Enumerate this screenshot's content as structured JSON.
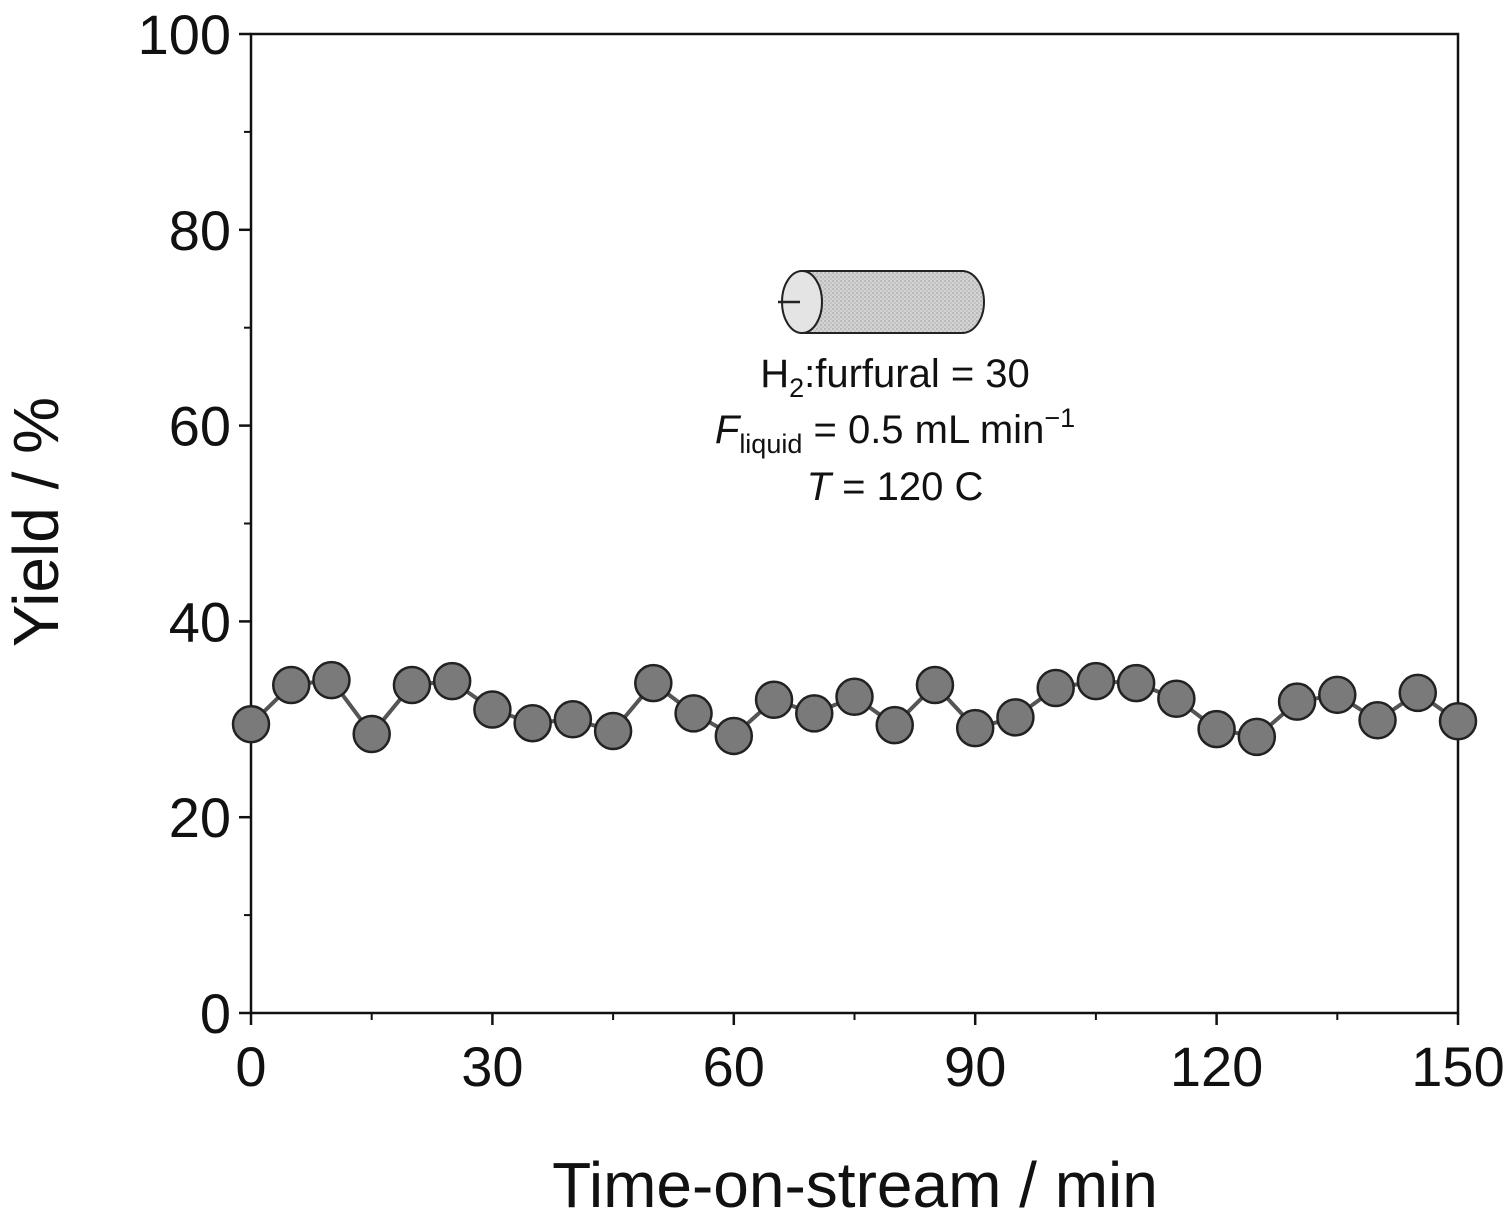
{
  "chart_data": {
    "type": "line",
    "title": "",
    "xlabel": "Time-on-stream / min",
    "ylabel": "Yield / %",
    "xlim": [
      0,
      150
    ],
    "ylim": [
      0,
      100
    ],
    "xticks": [
      0,
      30,
      60,
      90,
      120,
      150
    ],
    "yticks": [
      0,
      20,
      40,
      60,
      80,
      100
    ],
    "xtick_labels": [
      "0",
      "30",
      "60",
      "90",
      "120",
      "150"
    ],
    "ytick_labels": [
      "0",
      "20",
      "40",
      "60",
      "80",
      "100"
    ],
    "grid": false,
    "legend": "none",
    "series": [
      {
        "name": "Yield",
        "marker": "circle",
        "marker_color": "#7a7a7a",
        "line_color": "#555555",
        "x": [
          0,
          5,
          10,
          15,
          20,
          25,
          30,
          35,
          40,
          45,
          50,
          55,
          60,
          65,
          70,
          75,
          80,
          85,
          90,
          95,
          100,
          105,
          110,
          115,
          120,
          125,
          130,
          135,
          140,
          145,
          150
        ],
        "y": [
          29.5,
          33.5,
          34.0,
          28.5,
          33.5,
          33.9,
          31.0,
          29.6,
          30.0,
          28.8,
          33.7,
          30.6,
          28.3,
          32.0,
          30.6,
          32.3,
          29.4,
          33.5,
          29.1,
          30.2,
          33.2,
          33.9,
          33.7,
          32.1,
          29.0,
          28.2,
          31.8,
          32.5,
          29.9,
          32.7,
          29.8
        ]
      }
    ],
    "annotations": {
      "line1_main": "H",
      "line1_sub": "2",
      "line1_rest": ":furfural = 30",
      "line2_main": "F",
      "line2_sub": "liquid",
      "line2_rest": " = 0.5 mL min",
      "line2_sup": "−1",
      "line3_main": "T",
      "line3_rest": " = 120   C"
    }
  }
}
